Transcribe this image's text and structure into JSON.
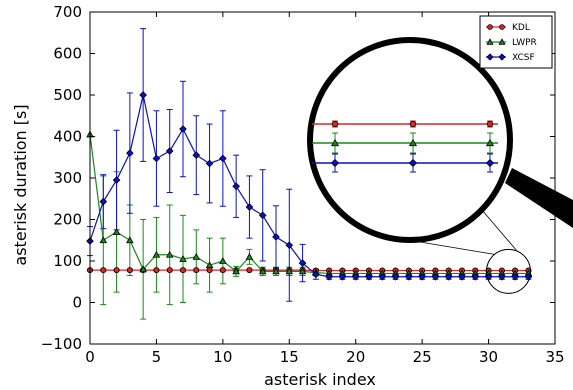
{
  "chart_data": {
    "type": "line",
    "title": "",
    "xlabel": "asterisk index",
    "ylabel": "asterisk duration [s]",
    "xlim": [
      0,
      35
    ],
    "ylim": [
      -100,
      700
    ],
    "xticks": [
      "0",
      "5",
      "10",
      "15",
      "20",
      "25",
      "30",
      "35"
    ],
    "yticks": [
      "−100",
      "0",
      "100",
      "200",
      "300",
      "400",
      "500",
      "600",
      "700"
    ],
    "grid": false,
    "legend_position": "top-right",
    "x": [
      0,
      1,
      2,
      3,
      4,
      5,
      6,
      7,
      8,
      9,
      10,
      11,
      12,
      13,
      14,
      15,
      16,
      17,
      18,
      19,
      20,
      21,
      22,
      23,
      24,
      25,
      26,
      27,
      28,
      29,
      30,
      31,
      32,
      33
    ],
    "series": [
      {
        "name": "KDL",
        "color": "#d62728",
        "marker": "circle",
        "values": [
          78,
          78,
          78,
          78,
          78,
          78,
          78,
          78,
          78,
          78,
          78,
          78,
          78,
          78,
          78,
          78,
          78,
          77,
          77,
          77,
          77,
          77,
          77,
          77,
          77,
          77,
          77,
          77,
          77,
          77,
          77,
          77,
          77,
          77
        ],
        "errors": [
          2,
          2,
          2,
          2,
          2,
          2,
          2,
          2,
          2,
          2,
          2,
          2,
          2,
          2,
          2,
          2,
          2,
          2,
          2,
          2,
          2,
          2,
          2,
          2,
          2,
          2,
          2,
          2,
          2,
          2,
          2,
          2,
          2,
          2
        ]
      },
      {
        "name": "LWPR",
        "color": "#1a8a1a",
        "marker": "triangle",
        "values": [
          405,
          150,
          170,
          150,
          80,
          115,
          115,
          105,
          110,
          90,
          100,
          75,
          110,
          75,
          75,
          75,
          75,
          72,
          70,
          70,
          70,
          70,
          70,
          70,
          70,
          70,
          70,
          70,
          70,
          70,
          70,
          70,
          70,
          70
        ],
        "errors": [
          0,
          155,
          145,
          85,
          120,
          90,
          120,
          105,
          65,
          65,
          55,
          12,
          18,
          10,
          10,
          10,
          10,
          8,
          5,
          5,
          5,
          5,
          5,
          5,
          5,
          5,
          5,
          5,
          5,
          5,
          5,
          5,
          5,
          5
        ]
      },
      {
        "name": "XCSF",
        "color": "#0a10c8",
        "marker": "diamond",
        "values": [
          148,
          243,
          295,
          360,
          500,
          347,
          365,
          418,
          355,
          335,
          347,
          280,
          230,
          210,
          158,
          138,
          95,
          68,
          62,
          62,
          62,
          62,
          62,
          62,
          62,
          62,
          62,
          62,
          62,
          62,
          62,
          62,
          62,
          62
        ],
        "errors": [
          35,
          65,
          120,
          145,
          160,
          115,
          100,
          115,
          95,
          95,
          115,
          75,
          75,
          110,
          75,
          135,
          45,
          12,
          6,
          6,
          6,
          6,
          6,
          6,
          6,
          6,
          6,
          6,
          6,
          6,
          6,
          6,
          6,
          6
        ]
      }
    ],
    "inset": {
      "description": "magnifier",
      "x_range": [
        30,
        33
      ]
    }
  },
  "legend": {
    "items": [
      "KDL",
      "LWPR",
      "XCSF"
    ]
  }
}
